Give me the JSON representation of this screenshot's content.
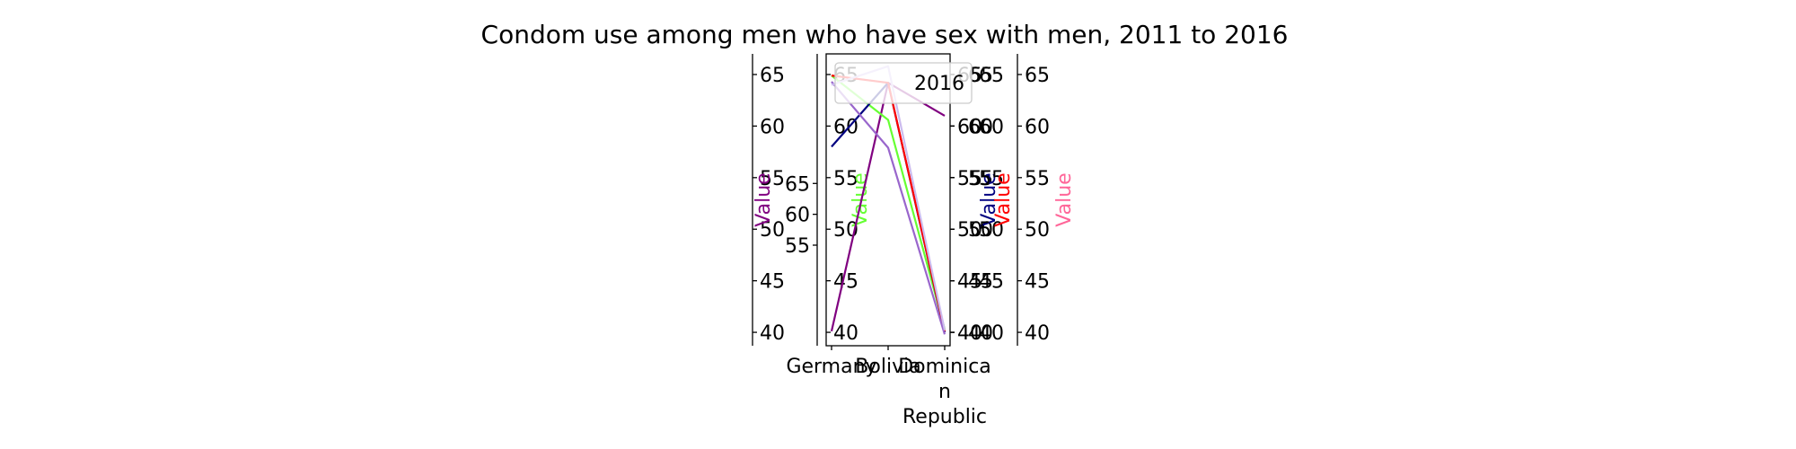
{
  "chart_data": {
    "type": "line",
    "title": "Condom use among men who have sex with men, 2011 to 2016",
    "categories": [
      "Germany",
      "Bolivia",
      "Dominican Republic"
    ],
    "category_labels": [
      [
        "Germany"
      ],
      [
        "Bolivia"
      ],
      [
        "Dominica",
        "n",
        "Republic"
      ]
    ],
    "series": [
      {
        "color": "#800080",
        "values": [
          40.1,
          64.2,
          61.0
        ]
      },
      {
        "color": "#66ff33",
        "values": [
          64.9,
          60.6,
          40.3
        ]
      },
      {
        "color": "#000080",
        "values": [
          58.0,
          64.2,
          40.0
        ]
      },
      {
        "color": "#ff0000",
        "values": [
          64.9,
          64.2,
          40.1
        ]
      },
      {
        "color": "#9966cc",
        "values": [
          64.3,
          57.9,
          39.8
        ]
      },
      {
        "color": "#ccbbee",
        "values": [
          64.0,
          65.8,
          40.2
        ]
      }
    ],
    "axes": [
      {
        "ticks": [
          "40",
          "45",
          "50",
          "55",
          "60",
          "65"
        ],
        "label": "Value",
        "label_color": "#800080"
      },
      {
        "ticks": [
          "55",
          "60",
          "65"
        ],
        "label": "",
        "label_color": ""
      },
      {
        "ticks": [
          "40",
          "45",
          "50",
          "55",
          "60",
          "65"
        ],
        "label": "Value",
        "label_color": "#66ff33"
      },
      {
        "ticks": [
          "40",
          "45",
          "50",
          "55",
          "60",
          "65"
        ],
        "label": "",
        "label_color": ""
      },
      {
        "ticks": [
          "40",
          "45",
          "50",
          "55",
          "60",
          "65"
        ],
        "label": "Value",
        "label_color": "#000080"
      },
      {
        "ticks": [
          "40",
          "45",
          "50",
          "55",
          "60",
          "65"
        ],
        "label": "Value",
        "label_color": "#ff0000"
      },
      {
        "ticks": [
          "40",
          "45",
          "50",
          "55",
          "60",
          "65"
        ],
        "label": "Value",
        "label_color": "#ff6699"
      }
    ],
    "ylim": [
      38.7,
      67.0
    ],
    "legend": {
      "label": "2016",
      "placement": "top-right"
    },
    "grid": false
  }
}
